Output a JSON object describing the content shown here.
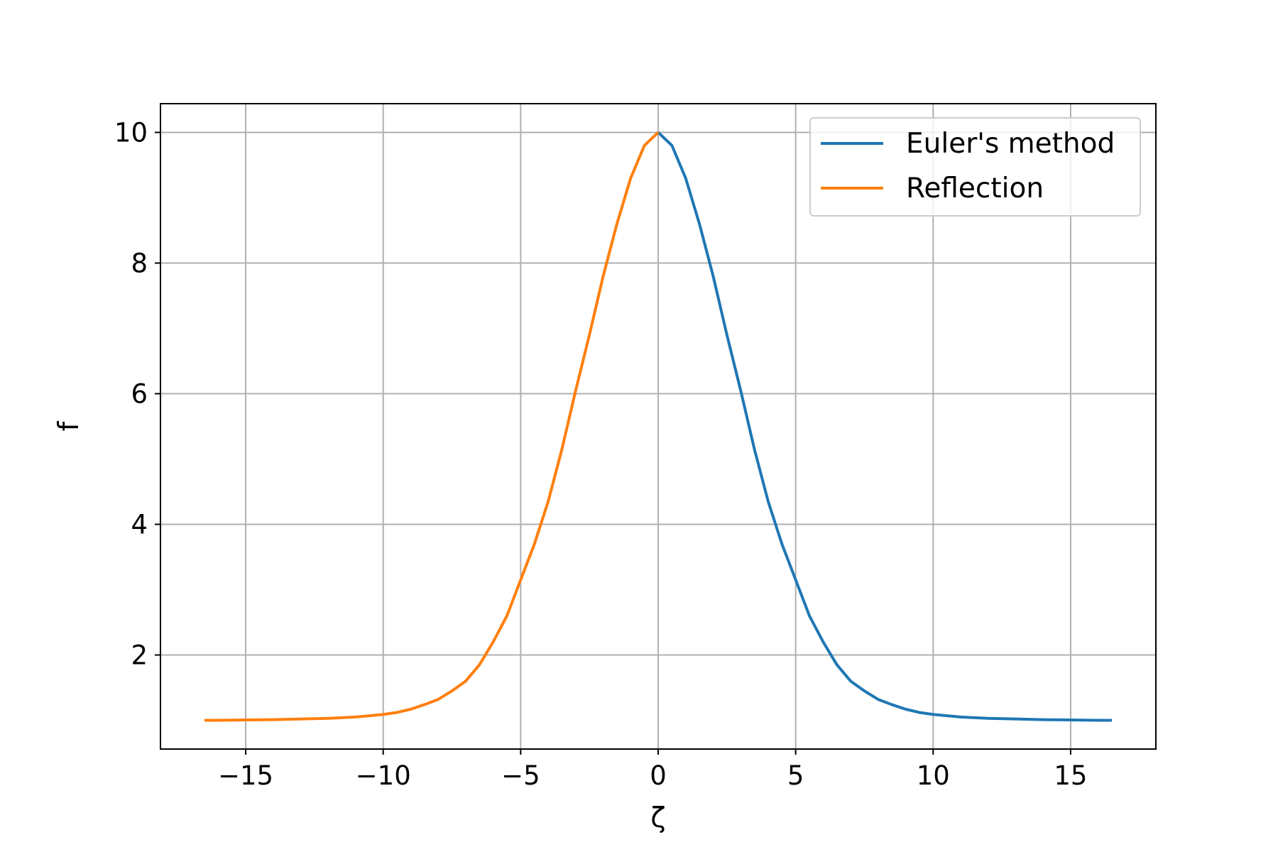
{
  "chart_data": {
    "type": "line",
    "xlabel": "ζ",
    "ylabel": "f",
    "xlim": [
      -18.1,
      18.1
    ],
    "ylim": [
      0.56,
      10.44
    ],
    "xticks": [
      -15,
      -10,
      -5,
      0,
      5,
      10,
      15
    ],
    "xtick_labels": [
      "−15",
      "−10",
      "−5",
      "0",
      "5",
      "10",
      "15"
    ],
    "yticks": [
      2,
      4,
      6,
      8,
      10
    ],
    "ytick_labels": [
      "2",
      "4",
      "6",
      "8",
      "10"
    ],
    "grid": true,
    "legend_position": "top-right",
    "series": [
      {
        "name": "Euler's method",
        "color": "#1f77b4",
        "x": [
          0,
          0.5,
          1,
          1.5,
          2,
          2.5,
          3,
          3.5,
          4,
          4.5,
          5,
          5.5,
          6,
          6.5,
          7,
          7.5,
          8,
          8.5,
          9,
          9.5,
          10,
          11,
          12,
          13,
          14,
          15,
          16,
          16.5
        ],
        "y": [
          10.0,
          9.8,
          9.3,
          8.6,
          7.8,
          6.9,
          6.05,
          5.15,
          4.35,
          3.7,
          3.15,
          2.6,
          2.2,
          1.85,
          1.6,
          1.45,
          1.32,
          1.24,
          1.17,
          1.12,
          1.09,
          1.05,
          1.03,
          1.02,
          1.01,
          1.005,
          1.0,
          1.0
        ]
      },
      {
        "name": "Reflection",
        "color": "#ff7f0e",
        "x": [
          -16.5,
          -16,
          -15,
          -14,
          -13,
          -12,
          -11,
          -10,
          -9.5,
          -9,
          -8.5,
          -8,
          -7.5,
          -7,
          -6.5,
          -6,
          -5.5,
          -5,
          -4.5,
          -4,
          -3.5,
          -3,
          -2.5,
          -2,
          -1.5,
          -1,
          -0.5,
          0
        ],
        "y": [
          1.0,
          1.0,
          1.005,
          1.01,
          1.02,
          1.03,
          1.05,
          1.09,
          1.12,
          1.17,
          1.24,
          1.32,
          1.45,
          1.6,
          1.85,
          2.2,
          2.6,
          3.15,
          3.7,
          4.35,
          5.15,
          6.05,
          6.9,
          7.8,
          8.6,
          9.3,
          9.8,
          10.0
        ]
      }
    ]
  }
}
